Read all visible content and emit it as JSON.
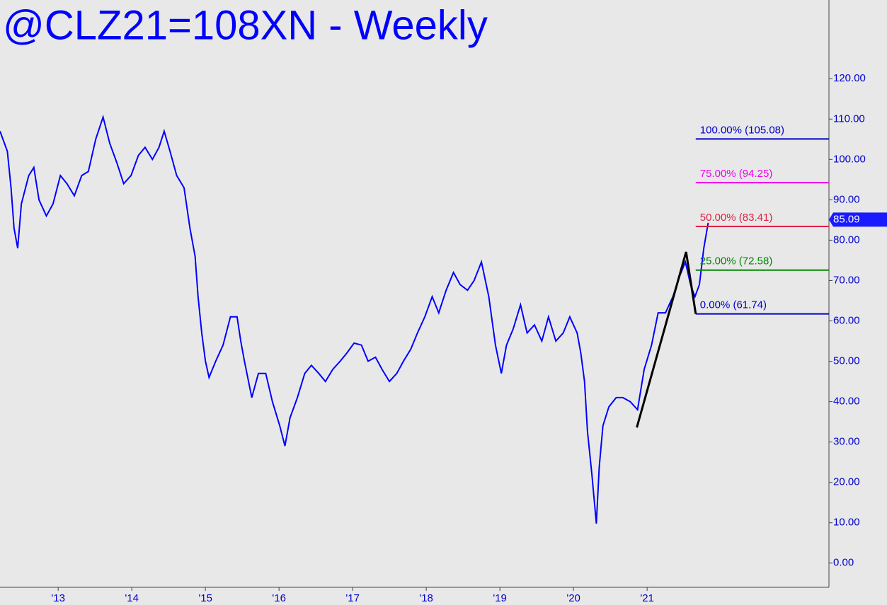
{
  "chart_data": {
    "type": "line",
    "title": "@CLZ21=108XN - Weekly",
    "xlim": [
      2012.21,
      2023.47
    ],
    "xticks": [
      {
        "value": 2013,
        "label": "'13"
      },
      {
        "value": 2014,
        "label": "'14"
      },
      {
        "value": 2015,
        "label": "'15"
      },
      {
        "value": 2016,
        "label": "'16"
      },
      {
        "value": 2017,
        "label": "'17"
      },
      {
        "value": 2018,
        "label": "'18"
      },
      {
        "value": 2019,
        "label": "'19"
      },
      {
        "value": 2020,
        "label": "'20"
      },
      {
        "value": 2021,
        "label": "'21"
      }
    ],
    "ylim": [
      -6,
      139.5
    ],
    "yticks": [
      {
        "value": 0,
        "label": "0.00"
      },
      {
        "value": 10,
        "label": "10.00"
      },
      {
        "value": 20,
        "label": "20.00"
      },
      {
        "value": 30,
        "label": "30.00"
      },
      {
        "value": 40,
        "label": "40.00"
      },
      {
        "value": 50,
        "label": "50.00"
      },
      {
        "value": 60,
        "label": "60.00"
      },
      {
        "value": 70,
        "label": "70.00"
      },
      {
        "value": 80,
        "label": "80.00"
      },
      {
        "value": 90,
        "label": "90.00"
      },
      {
        "value": 100,
        "label": "100.00"
      },
      {
        "value": 110,
        "label": "110.00"
      },
      {
        "value": 120,
        "label": "120.00"
      }
    ],
    "series": [
      {
        "color": "#0000ff",
        "x": [
          2012.21,
          2012.31,
          2012.36,
          2012.4,
          2012.45,
          2012.5,
          2012.6,
          2012.67,
          2012.74,
          2012.84,
          2012.93,
          2013.03,
          2013.12,
          2013.22,
          2013.32,
          2013.41,
          2013.51,
          2013.61,
          2013.7,
          2013.8,
          2013.89,
          2013.99,
          2014.09,
          2014.18,
          2014.28,
          2014.37,
          2014.44,
          2014.52,
          2014.61,
          2014.71,
          2014.79,
          2014.86,
          2014.9,
          2014.95,
          2015.0,
          2015.05,
          2015.14,
          2015.24,
          2015.34,
          2015.43,
          2015.48,
          2015.53,
          2015.63,
          2015.72,
          2015.82,
          2015.91,
          2016.01,
          2016.08,
          2016.15,
          2016.25,
          2016.35,
          2016.44,
          2016.54,
          2016.63,
          2016.73,
          2016.83,
          2016.92,
          2017.02,
          2017.12,
          2017.21,
          2017.31,
          2017.4,
          2017.5,
          2017.6,
          2017.69,
          2017.79,
          2017.88,
          2017.98,
          2018.08,
          2018.17,
          2018.27,
          2018.37,
          2018.46,
          2018.56,
          2018.65,
          2018.75,
          2018.85,
          2018.94,
          2019.02,
          2019.09,
          2019.18,
          2019.28,
          2019.37,
          2019.47,
          2019.57,
          2019.66,
          2019.76,
          2019.86,
          2019.95,
          2020.05,
          2020.1,
          2020.15,
          2020.19,
          2020.25,
          2020.31,
          2020.35,
          2020.4,
          2020.48,
          2020.58,
          2020.67,
          2020.77,
          2020.87,
          2020.96,
          2021.06,
          2021.15,
          2021.25,
          2021.35,
          2021.44,
          2021.52,
          2021.59,
          2021.65,
          2021.71,
          2021.77,
          2021.83
        ],
        "values": [
          107,
          102,
          93,
          83,
          78,
          89,
          96,
          98,
          90,
          86,
          89,
          96,
          94,
          91,
          96,
          97,
          105,
          110.5,
          104,
          99,
          94,
          96,
          101,
          103,
          100,
          103,
          107,
          102,
          96,
          93,
          83,
          76,
          66,
          57,
          50,
          46,
          50,
          54,
          61,
          61,
          55,
          50,
          41,
          47,
          47,
          40,
          34,
          29,
          36,
          41,
          47,
          49,
          47,
          45,
          48,
          50,
          52,
          54.5,
          54,
          50,
          51,
          48,
          45,
          47,
          50,
          53,
          57,
          61,
          66,
          62,
          67.6,
          72,
          69,
          67.6,
          70,
          74.6,
          66,
          54,
          47,
          54,
          58,
          64,
          57,
          59,
          55,
          61,
          55,
          57,
          61,
          57,
          52,
          45,
          32.6,
          22,
          9.8,
          23.8,
          34,
          38.7,
          41,
          41,
          40,
          38,
          48,
          54,
          62,
          62,
          66,
          71,
          74.6,
          69,
          66,
          69,
          78,
          84.3
        ]
      }
    ],
    "pattern": {
      "color": "#000000",
      "x": [
        2020.86,
        2021.53,
        2021.66
      ],
      "values": [
        33.6,
        77.1,
        61.74
      ]
    },
    "fib_levels": [
      {
        "label": "100.00% (105.08)",
        "value": 105.08,
        "color": "#0000cc"
      },
      {
        "label": "75.00% (94.25)",
        "value": 94.25,
        "color": "#ee00ee"
      },
      {
        "label": "50.00% (83.41)",
        "value": 83.41,
        "color": "#dd2244"
      },
      {
        "label": "25.00% (72.58)",
        "value": 72.58,
        "color": "#008800"
      },
      {
        "label": "0.00% (61.74)",
        "value": 61.74,
        "color": "#0000cc"
      }
    ],
    "fib_start": 2021.66,
    "last_price": 85.09
  }
}
